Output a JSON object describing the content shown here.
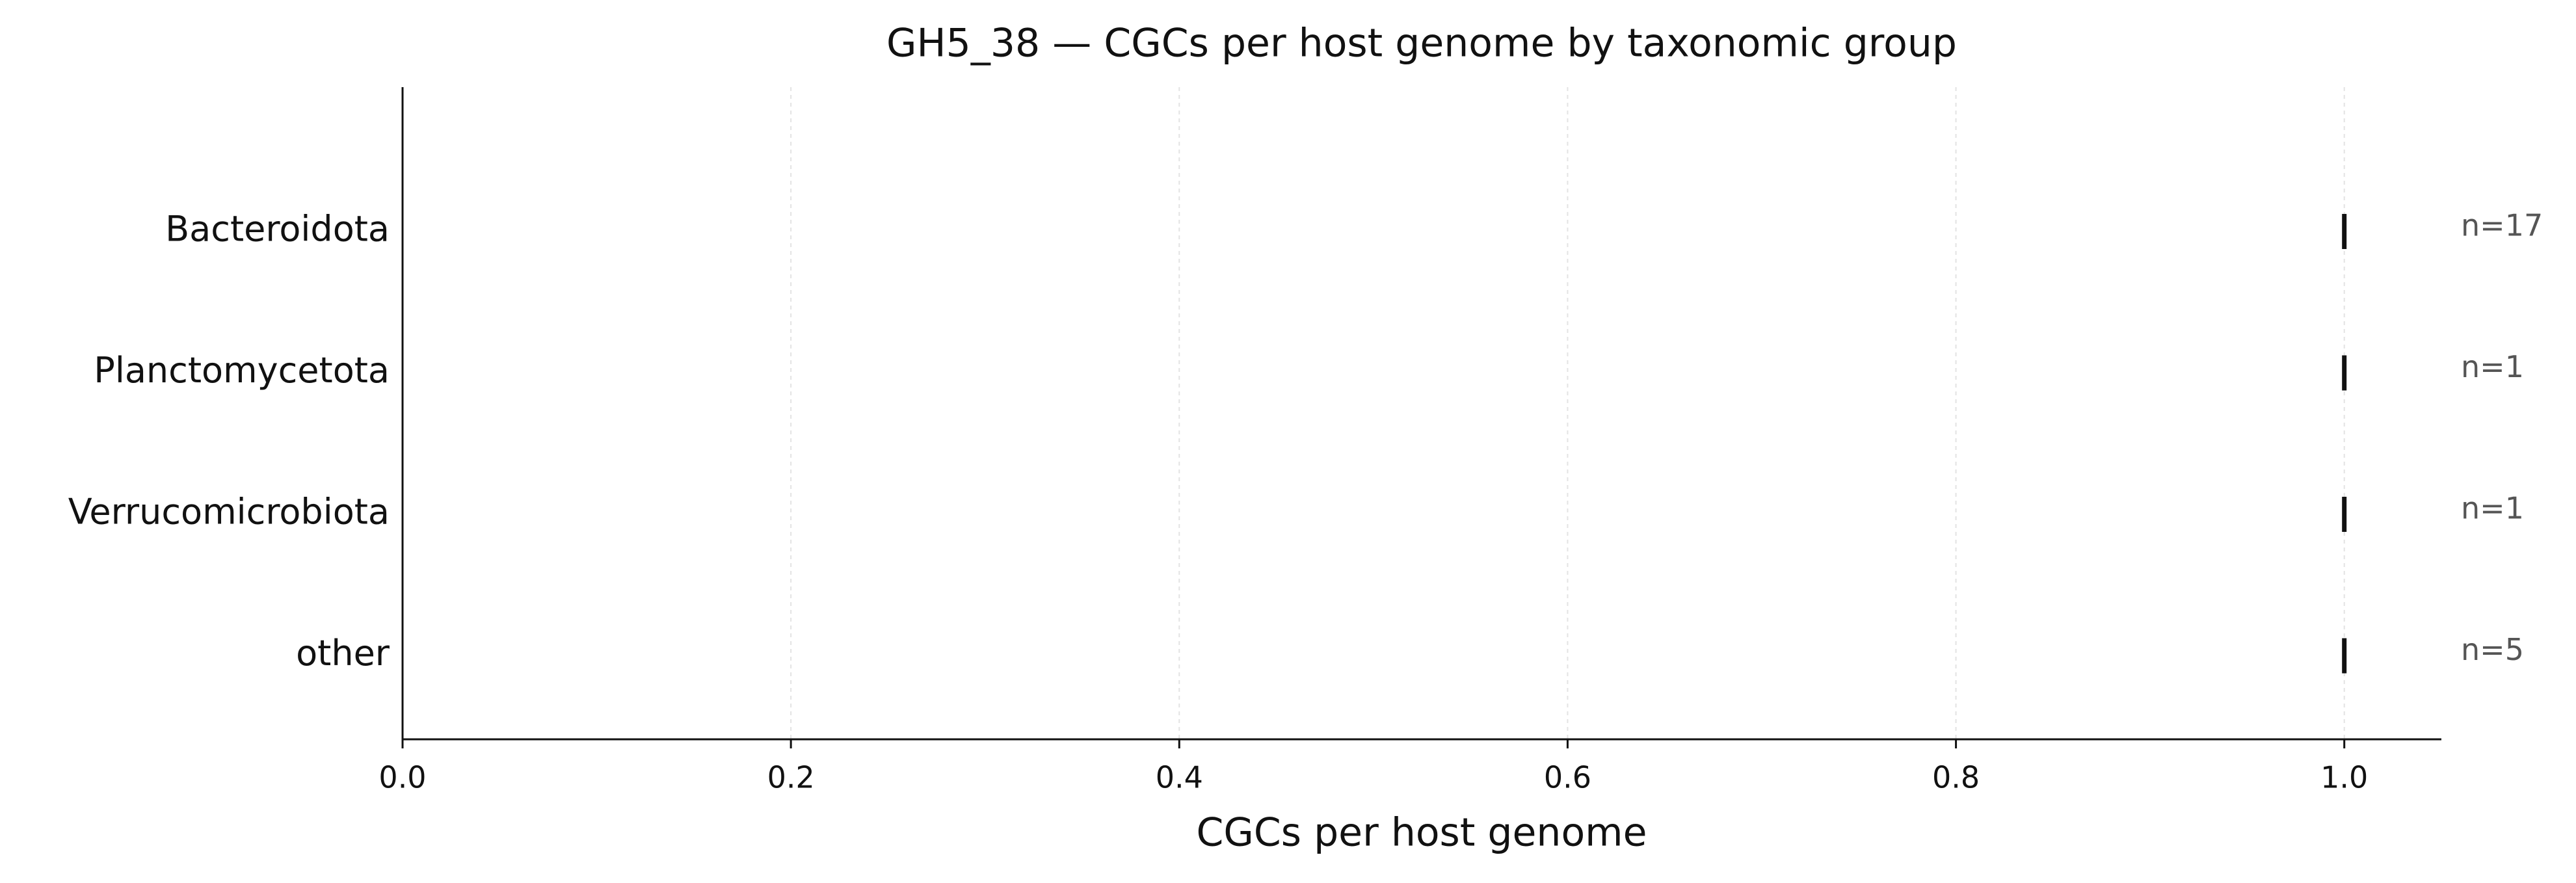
{
  "chart_data": {
    "type": "strip",
    "title": "GH5_38 — CGCs per host genome by taxonomic group",
    "xlabel": "CGCs per host genome",
    "categories": [
      "Bacteroidota",
      "Planctomycetota",
      "Verrucomicrobiota",
      "other"
    ],
    "values": [
      1.0,
      1.0,
      1.0,
      1.0
    ],
    "annotations": [
      "n=17",
      "n=1",
      "n=1",
      "n=5"
    ],
    "color": "#111111",
    "xlim": [
      0,
      1.05
    ],
    "xticks": [
      {
        "value": 0,
        "label": "0.0"
      },
      0.2,
      0.4,
      0.6,
      0.8,
      {
        "value": 1,
        "label": "1.0"
      }
    ],
    "grid": true
  }
}
